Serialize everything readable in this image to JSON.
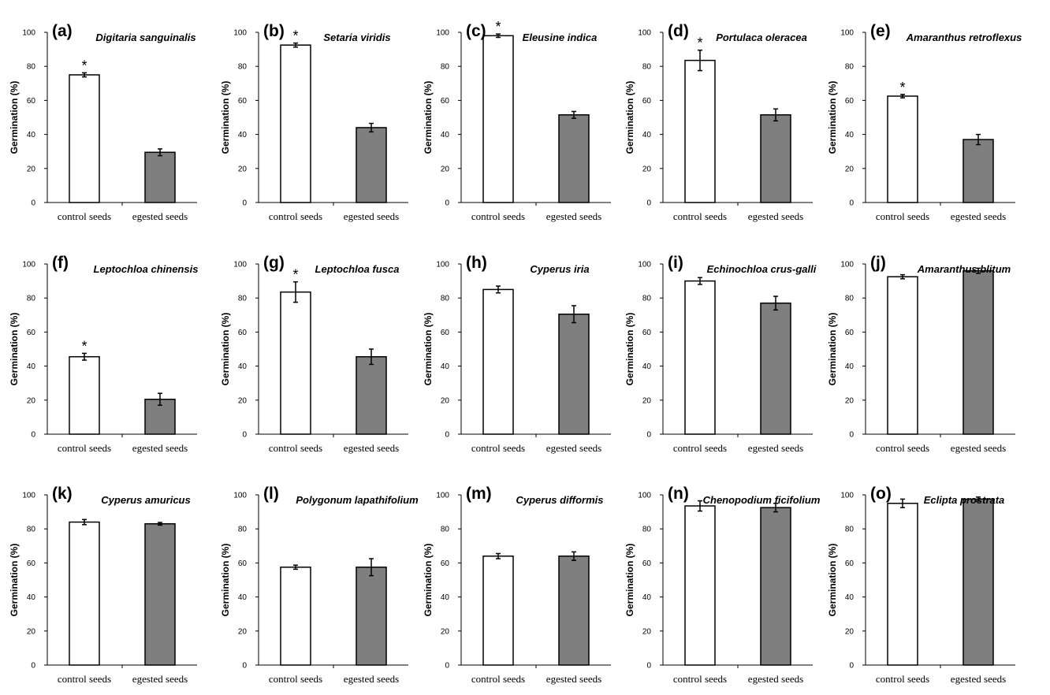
{
  "figure": {
    "ylabel": "Germination (%)",
    "categories": [
      "control seeds",
      "egested seeds"
    ],
    "yticks": [
      "0",
      "20",
      "40",
      "60",
      "80",
      "100"
    ],
    "colors": {
      "control": "#ffffff",
      "egested": "#7f7f7f",
      "stroke": "#000000"
    }
  },
  "chart_data": [
    {
      "type": "bar",
      "label": "(a)",
      "title": "Digitaria sanguinalis",
      "categories": [
        "control seeds",
        "egested seeds"
      ],
      "values": [
        75,
        29.5
      ],
      "errors": [
        1.2,
        2.0
      ],
      "significance": [
        "*",
        ""
      ],
      "ylabel": "Germination (%)",
      "ylim": [
        0,
        100
      ]
    },
    {
      "type": "bar",
      "label": "(b)",
      "title": "Setaria viridis",
      "categories": [
        "control seeds",
        "egested seeds"
      ],
      "values": [
        92.5,
        44
      ],
      "errors": [
        1.2,
        2.5
      ],
      "significance": [
        "*",
        ""
      ],
      "ylabel": "Germination (%)",
      "ylim": [
        0,
        100
      ]
    },
    {
      "type": "bar",
      "label": "(c)",
      "title": "Eleusine indica",
      "categories": [
        "control seeds",
        "egested seeds"
      ],
      "values": [
        98,
        51.5
      ],
      "errors": [
        1.0,
        2.0
      ],
      "significance": [
        "*",
        ""
      ],
      "ylabel": "Germination (%)",
      "ylim": [
        0,
        100
      ]
    },
    {
      "type": "bar",
      "label": "(d)",
      "title": "Portulaca oleracea",
      "categories": [
        "control seeds",
        "egested seeds"
      ],
      "values": [
        83.5,
        51.5
      ],
      "errors": [
        6.0,
        3.5
      ],
      "significance": [
        "*",
        ""
      ],
      "ylabel": "Germination (%)",
      "ylim": [
        0,
        100
      ]
    },
    {
      "type": "bar",
      "label": "(e)",
      "title": "Amaranthus retroflexus",
      "categories": [
        "control seeds",
        "egested seeds"
      ],
      "values": [
        62.5,
        37
      ],
      "errors": [
        1.0,
        3.0
      ],
      "significance": [
        "*",
        ""
      ],
      "ylabel": "Germination (%)",
      "ylim": [
        0,
        100
      ]
    },
    {
      "type": "bar",
      "label": "(f)",
      "title": "Leptochloa chinensis",
      "categories": [
        "control seeds",
        "egested seeds"
      ],
      "values": [
        45.5,
        20.5
      ],
      "errors": [
        2.0,
        3.5
      ],
      "significance": [
        "*",
        ""
      ],
      "ylabel": "Germination (%)",
      "ylim": [
        0,
        100
      ]
    },
    {
      "type": "bar",
      "label": "(g)",
      "title": "Leptochloa fusca",
      "categories": [
        "control seeds",
        "egested seeds"
      ],
      "values": [
        83.5,
        45.5
      ],
      "errors": [
        6.0,
        4.5
      ],
      "significance": [
        "*",
        ""
      ],
      "ylabel": "Germination (%)",
      "ylim": [
        0,
        100
      ]
    },
    {
      "type": "bar",
      "label": "(h)",
      "title": "Cyperus iria",
      "categories": [
        "control seeds",
        "egested seeds"
      ],
      "values": [
        85,
        70.5
      ],
      "errors": [
        2.0,
        5.0
      ],
      "significance": [
        "",
        ""
      ],
      "ylabel": "Germination (%)",
      "ylim": [
        0,
        100
      ]
    },
    {
      "type": "bar",
      "label": "(i)",
      "title": "Echinochloa crus-galli",
      "categories": [
        "control seeds",
        "egested seeds"
      ],
      "values": [
        90,
        77
      ],
      "errors": [
        2.0,
        4.0
      ],
      "significance": [
        "",
        ""
      ],
      "ylabel": "Germination (%)",
      "ylim": [
        0,
        100
      ]
    },
    {
      "type": "bar",
      "label": "(j)",
      "title": "Amaranthus blitum",
      "categories": [
        "control seeds",
        "egested seeds"
      ],
      "values": [
        92.5,
        96
      ],
      "errors": [
        1.2,
        1.5
      ],
      "significance": [
        "",
        ""
      ],
      "ylabel": "Germination (%)",
      "ylim": [
        0,
        100
      ]
    },
    {
      "type": "bar",
      "label": "(k)",
      "title": "Cyperus amuricus",
      "categories": [
        "control seeds",
        "egested seeds"
      ],
      "values": [
        84,
        83
      ],
      "errors": [
        1.5,
        0.8
      ],
      "significance": [
        "",
        ""
      ],
      "ylabel": "Germination (%)",
      "ylim": [
        0,
        100
      ]
    },
    {
      "type": "bar",
      "label": "(l)",
      "title": "Polygonum lapathifolium",
      "categories": [
        "control seeds",
        "egested seeds"
      ],
      "values": [
        57.5,
        57.5
      ],
      "errors": [
        1.2,
        5.0
      ],
      "significance": [
        "",
        ""
      ],
      "ylabel": "Germination (%)",
      "ylim": [
        0,
        100
      ]
    },
    {
      "type": "bar",
      "label": "(m)",
      "title": "Cyperus difformis",
      "categories": [
        "control seeds",
        "egested seeds"
      ],
      "values": [
        64,
        64
      ],
      "errors": [
        1.5,
        2.5
      ],
      "significance": [
        "",
        ""
      ],
      "ylabel": "Germination (%)",
      "ylim": [
        0,
        100
      ]
    },
    {
      "type": "bar",
      "label": "(n)",
      "title": "Chenopodium ficifolium",
      "categories": [
        "control seeds",
        "egested seeds"
      ],
      "values": [
        93.5,
        92.5
      ],
      "errors": [
        3.0,
        2.5
      ],
      "significance": [
        "",
        ""
      ],
      "ylabel": "Germination (%)",
      "ylim": [
        0,
        100
      ]
    },
    {
      "type": "bar",
      "label": "(o)",
      "title": "Eclipta prostrata",
      "categories": [
        "control seeds",
        "egested seeds"
      ],
      "values": [
        95,
        97.5
      ],
      "errors": [
        2.5,
        1.2
      ],
      "significance": [
        "",
        ""
      ],
      "ylabel": "Germination (%)",
      "ylim": [
        0,
        100
      ]
    }
  ]
}
